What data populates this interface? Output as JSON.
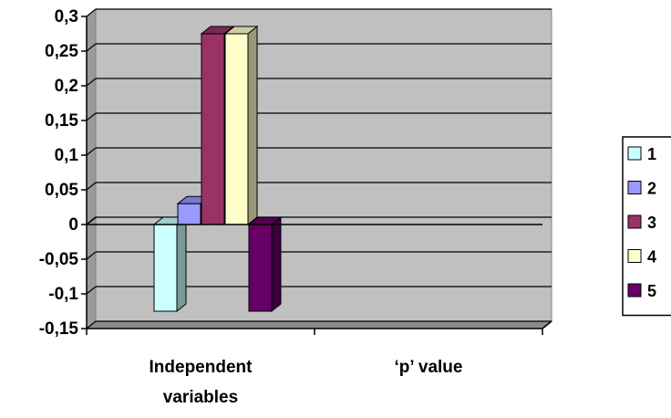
{
  "chart_data": {
    "type": "bar",
    "title": "",
    "xlabel": "",
    "ylabel": "",
    "categories": [
      "Independent variables",
      "‘p’ value"
    ],
    "category_lines": [
      [
        "Independent",
        "variables"
      ],
      [
        "‘p’ value"
      ]
    ],
    "ylim": [
      -0.15,
      0.3
    ],
    "yticks": [
      0.3,
      0.25,
      0.2,
      0.15,
      0.1,
      0.05,
      0,
      -0.05,
      -0.1,
      -0.15
    ],
    "ytick_labels": [
      "0,3",
      "0,25",
      "0,2",
      "0,15",
      "0,1",
      "0,05",
      "0",
      "-0,05",
      "-0,1",
      "-0,15"
    ],
    "grid": true,
    "legend_position": "right",
    "series": [
      {
        "name": "1",
        "color": "#ccffff",
        "values": [
          -0.125,
          null
        ]
      },
      {
        "name": "2",
        "color": "#9999ff",
        "values": [
          0.03,
          null
        ]
      },
      {
        "name": "3",
        "color": "#993366",
        "values": [
          0.275,
          null
        ]
      },
      {
        "name": "4",
        "color": "#ffffcc",
        "values": [
          0.275,
          null
        ]
      },
      {
        "name": "5",
        "color": "#660066",
        "values": [
          -0.125,
          null
        ]
      }
    ]
  }
}
